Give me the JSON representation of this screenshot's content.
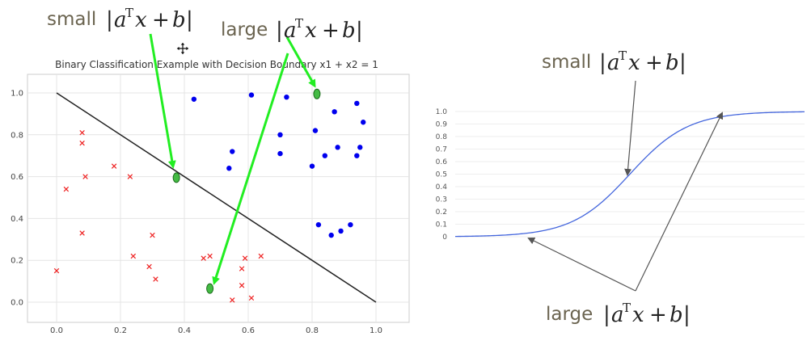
{
  "left_chart": {
    "title": "Binary Classification Example with Decision Boundary x1 + x2 = 1",
    "chart_data": {
      "type": "scatter",
      "title": "Binary Classification Example with Decision Boundary x1 + x2 = 1",
      "xlim": [
        -0.1,
        1.1
      ],
      "ylim": [
        -0.1,
        1.1
      ],
      "xticks": [
        "0.0",
        "0.2",
        "0.4",
        "0.6",
        "0.8",
        "1.0"
      ],
      "yticks": [
        "0.0",
        "0.2",
        "0.4",
        "0.6",
        "0.8",
        "1.0"
      ],
      "grid": true,
      "series": [
        {
          "marker": "circle",
          "color": "#0000ee",
          "points": [
            [
              0.43,
              0.97
            ],
            [
              0.61,
              0.99
            ],
            [
              0.72,
              0.98
            ],
            [
              0.55,
              0.72
            ],
            [
              0.54,
              0.64
            ],
            [
              0.7,
              0.8
            ],
            [
              0.7,
              0.71
            ],
            [
              0.87,
              0.91
            ],
            [
              0.81,
              0.82
            ],
            [
              0.84,
              0.7
            ],
            [
              0.8,
              0.65
            ],
            [
              0.88,
              0.74
            ],
            [
              0.94,
              0.95
            ],
            [
              0.96,
              0.86
            ],
            [
              0.95,
              0.74
            ],
            [
              0.94,
              0.7
            ],
            [
              0.82,
              0.37
            ],
            [
              0.86,
              0.32
            ],
            [
              0.89,
              0.34
            ],
            [
              0.92,
              0.37
            ]
          ]
        },
        {
          "marker": "x",
          "color": "#ee2222",
          "points": [
            [
              0.08,
              0.81
            ],
            [
              0.08,
              0.76
            ],
            [
              0.09,
              0.6
            ],
            [
              0.03,
              0.54
            ],
            [
              0.18,
              0.65
            ],
            [
              0.23,
              0.6
            ],
            [
              0.08,
              0.33
            ],
            [
              0.3,
              0.32
            ],
            [
              0.24,
              0.22
            ],
            [
              0.29,
              0.17
            ],
            [
              0.31,
              0.11
            ],
            [
              0.0,
              0.15
            ],
            [
              0.46,
              0.21
            ],
            [
              0.48,
              0.22
            ],
            [
              0.58,
              0.16
            ],
            [
              0.59,
              0.21
            ],
            [
              0.64,
              0.22
            ],
            [
              0.58,
              0.08
            ],
            [
              0.61,
              0.02
            ],
            [
              0.55,
              0.01
            ]
          ]
        }
      ],
      "decision_boundary": {
        "from": [
          0.0,
          1.0
        ],
        "to": [
          1.0,
          0.0
        ],
        "color": "#222222"
      },
      "highlighted_points": [
        [
          0.375,
          0.595
        ],
        [
          0.815,
          0.995
        ],
        [
          0.48,
          0.065
        ]
      ],
      "highlight_color": "#44bb44"
    }
  },
  "right_chart": {
    "chart_data": {
      "type": "line",
      "series_color": "#4466dd",
      "yticks": [
        "0",
        "0.1",
        "0.2",
        "0.3",
        "0.4",
        "0.5",
        "0.6",
        "0.7",
        "0.8",
        "0.9",
        "1.0"
      ],
      "ylim": [
        0,
        1.0
      ],
      "xlim": [
        -6,
        6
      ],
      "function": "sigmoid"
    }
  },
  "annotations": {
    "left_small_word": "small",
    "left_large_word": "large",
    "right_small_word": "small",
    "right_large_word": "large",
    "math_bar": "|",
    "math_a": "a",
    "math_T": "T",
    "math_x": "x",
    "math_plus": "+",
    "math_b": "b",
    "arrow_color_left": "#22ee22",
    "arrow_color_right": "#555555"
  },
  "cursor_icon": "move-cursor-icon"
}
